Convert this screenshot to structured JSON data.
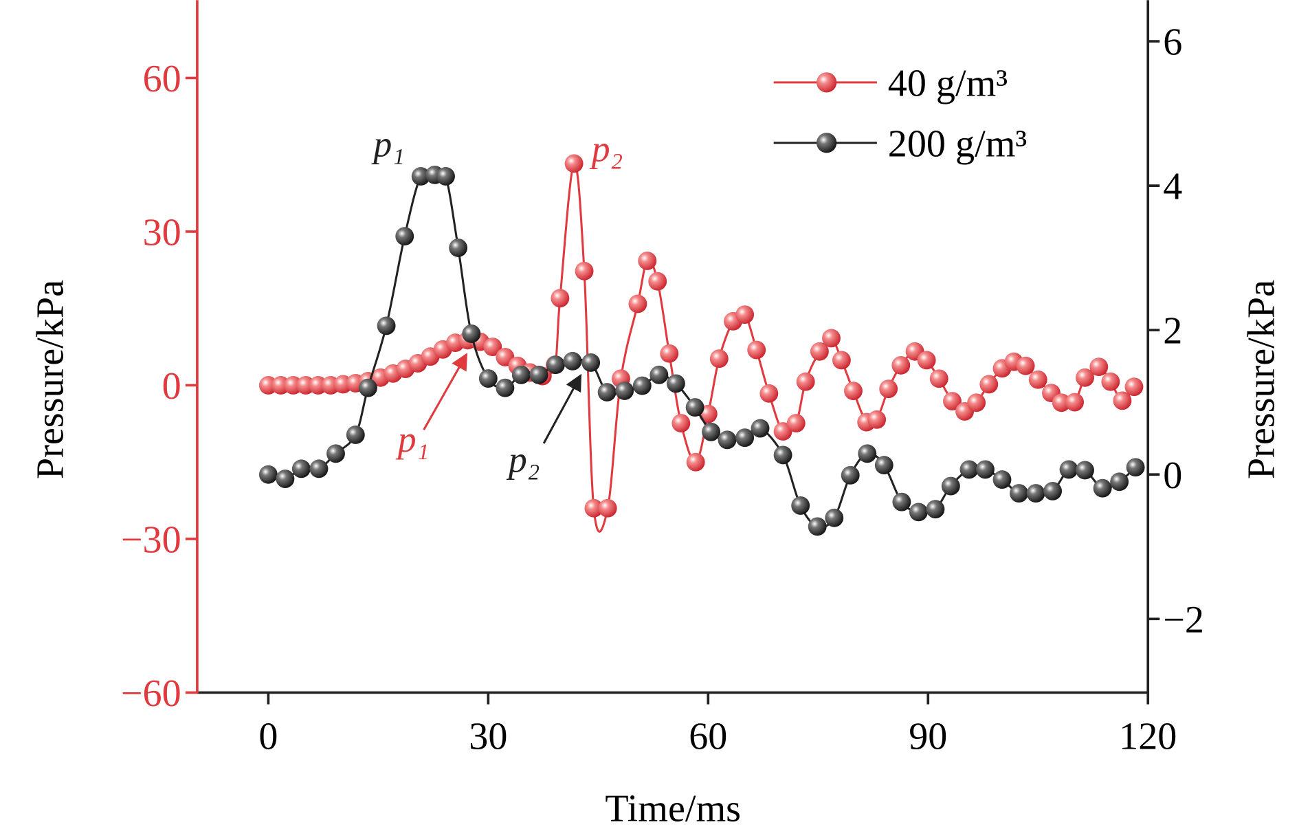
{
  "chart_data": {
    "type": "line",
    "xlabel": "Time/ms",
    "ylabel": "Pressure/kPa",
    "y2label": "Pressure/kPa",
    "xlim": [
      -9.7,
      120
    ],
    "ylim": [
      -60,
      75.2
    ],
    "y2lim": [
      -3.02,
      6.57
    ],
    "xticks": [
      0,
      30,
      60,
      90,
      120
    ],
    "yticks": [
      {
        "value": -60,
        "label": "−60"
      },
      {
        "value": -30,
        "label": "−30"
      },
      0,
      30,
      60
    ],
    "y2ticks": [
      {
        "value": -2,
        "label": "−2"
      },
      0,
      2,
      4,
      6
    ],
    "legend": "upper right",
    "grid": false,
    "series": [
      {
        "name": "40 g/m³",
        "color": "#e0393e",
        "axis": "y",
        "x": [
          0,
          1.7,
          3.4,
          5.1,
          6.8,
          8.5,
          10.2,
          11.9,
          13.6,
          15.3,
          17,
          18.7,
          20.4,
          22.1,
          23.8,
          25.5,
          27.2,
          28.9,
          30.6,
          32.3,
          34,
          35.7,
          37.4,
          39.1,
          39.8,
          41.7,
          43.1,
          44.4,
          46.3,
          48.1,
          50.4,
          51.7,
          53.1,
          54.7,
          56.3,
          58.3,
          60,
          61.5,
          63.4,
          65,
          66.6,
          68.3,
          70.2,
          72,
          73.3,
          75.2,
          76.8,
          78.2,
          79.8,
          81.6,
          83,
          84.6,
          86.3,
          88.2,
          89.8,
          91.5,
          93.3,
          95,
          96.6,
          98.3,
          100.1,
          101.7,
          103.3,
          105,
          106.8,
          108.2,
          110,
          111.4,
          113.3,
          114.9,
          116.5,
          118.1
        ],
        "values": [
          0,
          0,
          0,
          0,
          0,
          0,
          0.2,
          0.4,
          0.8,
          1.5,
          2.3,
          3.2,
          4.3,
          5.6,
          7,
          8.3,
          8.8,
          8.5,
          7.5,
          5.5,
          3.8,
          2.5,
          1.8,
          4,
          17,
          43.3,
          22.3,
          -24,
          -24,
          1.3,
          15.9,
          24.3,
          20.3,
          6.2,
          -7.4,
          -15,
          -5.6,
          5.2,
          12.5,
          13.8,
          6.9,
          -1.6,
          -9,
          -7.4,
          0.7,
          6.6,
          9.2,
          4.9,
          -1.1,
          -7.2,
          -6.7,
          -0.7,
          3.9,
          6.6,
          4.9,
          1.3,
          -3.1,
          -5.1,
          -3.4,
          0.2,
          3.3,
          4.6,
          3.8,
          1.1,
          -1.5,
          -3.4,
          -3.3,
          1.5,
          3.6,
          0.7,
          -3,
          -0.3
        ]
      },
      {
        "name": "200 g/m³",
        "color": "#222222",
        "axis": "y2",
        "x": [
          0,
          2.3,
          4.5,
          6.9,
          9.2,
          11.9,
          13.6,
          16.1,
          18.6,
          20.8,
          22.7,
          24.2,
          25.9,
          27.7,
          30,
          32.3,
          34.5,
          36.9,
          39.2,
          41.5,
          44,
          46.2,
          48.6,
          51,
          53.3,
          55.6,
          58.2,
          60.4,
          62.6,
          65,
          67.1,
          70.2,
          72.6,
          74.9,
          77.2,
          79.4,
          81.7,
          84,
          86.4,
          88.7,
          91,
          93.1,
          95.6,
          97.8,
          100.1,
          102.4,
          104.7,
          107,
          109.2,
          111.4,
          113.8,
          116.1,
          118.3
        ],
        "values": [
          0,
          -0.06,
          0.08,
          0.08,
          0.29,
          0.55,
          1.2,
          2.06,
          3.3,
          4.13,
          4.15,
          4.13,
          3.14,
          1.95,
          1.33,
          1.2,
          1.38,
          1.38,
          1.52,
          1.57,
          1.55,
          1.14,
          1.16,
          1.23,
          1.38,
          1.26,
          0.93,
          0.59,
          0.48,
          0.51,
          0.64,
          0.27,
          -0.43,
          -0.72,
          -0.6,
          -0.01,
          0.29,
          0.13,
          -0.38,
          -0.52,
          -0.48,
          -0.16,
          0.07,
          0.07,
          -0.07,
          -0.26,
          -0.26,
          -0.23,
          0.07,
          0.06,
          -0.19,
          -0.1,
          0.1
        ]
      }
    ],
    "annotations": [
      {
        "text": "p₁",
        "color": "#222222"
      },
      {
        "text": "p₂",
        "color": "#e0393e"
      },
      {
        "text": "p₁",
        "color": "#e0393e"
      },
      {
        "text": "p₂",
        "color": "#222222"
      }
    ]
  }
}
